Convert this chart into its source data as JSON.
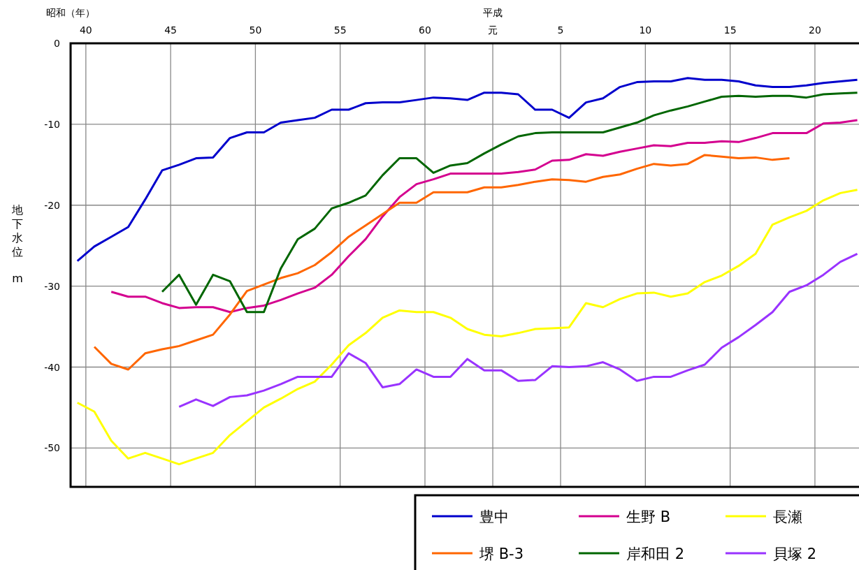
{
  "chart_data": {
    "type": "line",
    "xlabel": "昭和（年）",
    "x2label": "平成",
    "ylabel": "地下水位 m",
    "x": [
      39.5,
      40.5,
      41.5,
      42.5,
      43.5,
      44.5,
      45.5,
      46.5,
      47.5,
      48.5,
      49.5,
      50.5,
      51.5,
      52.5,
      53.5,
      54.5,
      55.5,
      56.5,
      57.5,
      58.5,
      59.5,
      60.5,
      61.5,
      62.5,
      63.5,
      64.5,
      65.5,
      66.5,
      67.5,
      68.5,
      69.5,
      70.5,
      71.5,
      72.5,
      73.5,
      74.5,
      75.5,
      76.5,
      77.5,
      78.5,
      79.5,
      80.5,
      81.5,
      82.5,
      83.5,
      84.5,
      85.5
    ],
    "series": [
      {
        "name": "豊中",
        "color": "#0000cc",
        "values": [
          -26.9,
          -25.1,
          -23.9,
          -22.7,
          -19.3,
          -15.7,
          -15.0,
          -14.2,
          -14.1,
          -11.7,
          -11.0,
          -11.0,
          -9.8,
          -9.5,
          -9.2,
          -8.2,
          -8.2,
          -7.4,
          -7.3,
          -7.3,
          -7.0,
          -6.7,
          -6.8,
          -7.0,
          -6.1,
          -6.1,
          -6.3,
          -8.2,
          -8.2,
          -9.2,
          -7.3,
          -6.8,
          -5.4,
          -4.8,
          -4.7,
          -4.7,
          -4.3,
          -4.5,
          -4.5,
          -4.7,
          -5.2,
          -5.4,
          -5.4,
          -5.2,
          -4.9,
          -4.7,
          -4.5
        ]
      },
      {
        "name": "生野 B",
        "color": "#d4008f",
        "values": [
          null,
          null,
          -30.7,
          -31.3,
          -31.3,
          -32.1,
          -32.7,
          -32.6,
          -32.6,
          -33.2,
          -32.7,
          -32.4,
          -31.7,
          -30.9,
          -30.2,
          -28.6,
          -26.3,
          -24.2,
          -21.4,
          -19.0,
          -17.4,
          -16.8,
          -16.1,
          -16.1,
          -16.1,
          -16.1,
          -15.9,
          -15.6,
          -14.5,
          -14.4,
          -13.7,
          -13.9,
          -13.4,
          -13.0,
          -12.6,
          -12.7,
          -12.3,
          -12.3,
          -12.1,
          -12.2,
          -11.7,
          -11.1,
          -11.1,
          -11.1,
          -9.9,
          -9.8,
          -9.5
        ]
      },
      {
        "name": "長瀬",
        "color": "#ffff00",
        "values": [
          -44.4,
          -45.5,
          -49.1,
          -51.3,
          -50.6,
          -51.3,
          -52.0,
          -51.3,
          -50.6,
          -48.4,
          -46.7,
          -45.0,
          -43.9,
          -42.7,
          -41.8,
          -39.7,
          -37.3,
          -35.8,
          -33.9,
          -33.0,
          -33.2,
          -33.2,
          -33.9,
          -35.3,
          -36.0,
          -36.2,
          -35.8,
          -35.3,
          -35.2,
          -35.1,
          -32.1,
          -32.6,
          -31.6,
          -30.9,
          -30.8,
          -31.3,
          -30.9,
          -29.5,
          -28.7,
          -27.5,
          -26.0,
          -22.4,
          -21.5,
          -20.7,
          -19.4,
          -18.5,
          -18.1
        ]
      },
      {
        "name": "堺 B-3",
        "color": "#ff6600",
        "values": [
          null,
          -37.5,
          -39.6,
          -40.3,
          -38.3,
          -37.8,
          -37.4,
          -36.7,
          -36.0,
          -33.5,
          -30.6,
          -29.8,
          -29.0,
          -28.4,
          -27.4,
          -25.8,
          -23.9,
          -22.5,
          -21.1,
          -19.7,
          -19.7,
          -18.4,
          -18.4,
          -18.4,
          -17.8,
          -17.8,
          -17.5,
          -17.1,
          -16.8,
          -16.9,
          -17.1,
          -16.5,
          -16.2,
          -15.5,
          -14.9,
          -15.1,
          -14.9,
          -13.8,
          -14.0,
          -14.2,
          -14.1,
          -14.4,
          -14.2,
          null,
          null,
          null,
          null
        ]
      },
      {
        "name": "岸和田 2",
        "color": "#006600",
        "values": [
          null,
          null,
          null,
          null,
          null,
          -30.7,
          -28.6,
          -32.3,
          -28.6,
          -29.4,
          -33.2,
          -33.2,
          -27.8,
          -24.2,
          -22.9,
          -20.4,
          -19.7,
          -18.8,
          -16.3,
          -14.2,
          -14.2,
          -16.0,
          -15.1,
          -14.8,
          -13.6,
          -12.5,
          -11.5,
          -11.1,
          -11.0,
          -11.0,
          -11.0,
          -11.0,
          -10.4,
          -9.8,
          -8.9,
          -8.3,
          -7.8,
          -7.2,
          -6.6,
          -6.5,
          -6.6,
          -6.5,
          -6.5,
          -6.7,
          -6.3,
          -6.2,
          -6.1
        ]
      },
      {
        "name": "貝塚 2",
        "color": "#9933ff",
        "values": [
          null,
          null,
          null,
          null,
          null,
          null,
          -44.9,
          -44.0,
          -44.8,
          -43.7,
          -43.5,
          -42.9,
          -42.1,
          -41.2,
          -41.2,
          -41.2,
          -38.3,
          -39.5,
          -42.5,
          -42.1,
          -40.3,
          -41.2,
          -41.2,
          -39.0,
          -40.4,
          -40.4,
          -41.7,
          -41.6,
          -39.9,
          -40.0,
          -39.9,
          -39.4,
          -40.3,
          -41.7,
          -41.2,
          -41.2,
          -40.4,
          -39.7,
          -37.6,
          -36.3,
          -34.8,
          -33.2,
          -30.7,
          -29.9,
          -28.6,
          -27.0,
          -26.0
        ]
      }
    ],
    "xlim": [
      39.1,
      85.6
    ],
    "xticks": [
      40,
      45,
      50,
      55,
      60
    ],
    "x2lim": [
      -23.9,
      22.6
    ],
    "x2ticks": [
      {
        "value": 1,
        "label": "元"
      },
      5,
      10,
      15,
      20
    ],
    "ylim": [
      -54.8,
      0
    ],
    "yticks": [
      0,
      -10,
      -20,
      -30,
      -40,
      -50
    ],
    "grid": true,
    "legend": "bottom right",
    "line_style": "solid",
    "marker": "none"
  }
}
